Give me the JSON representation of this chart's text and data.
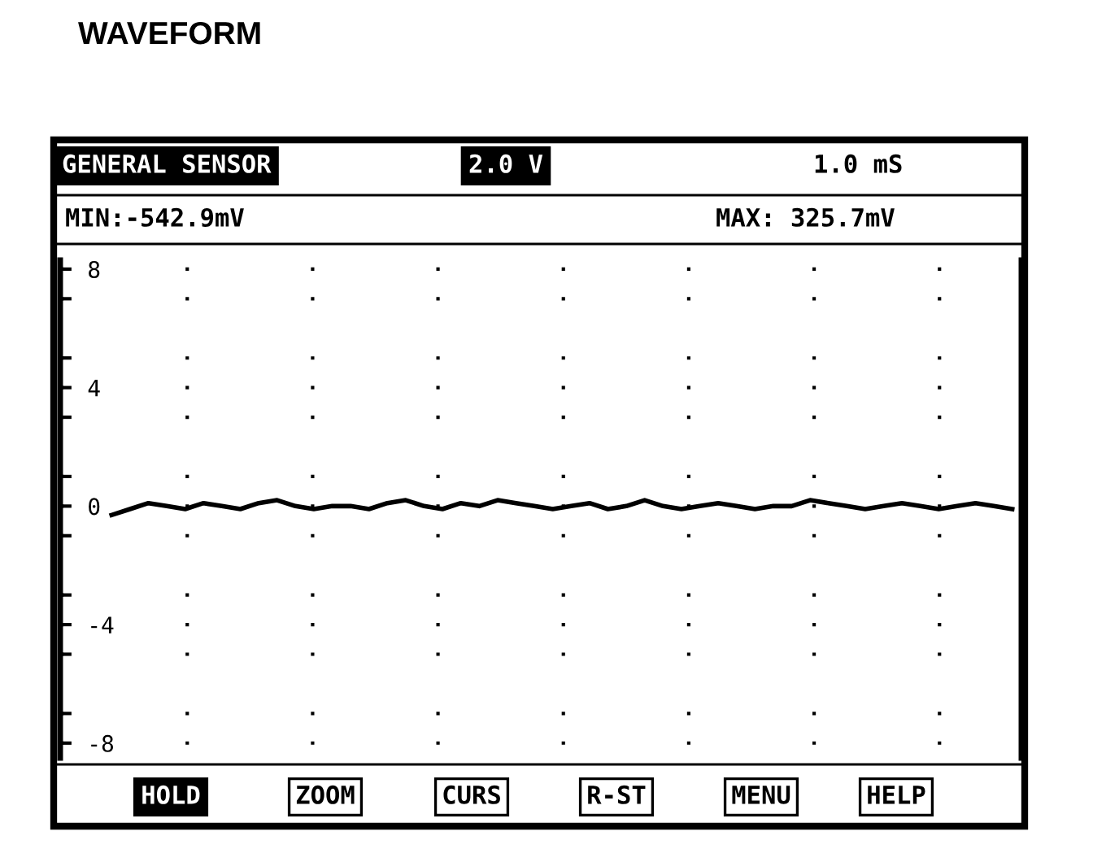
{
  "chart_data": {
    "type": "line",
    "title": "WAVEFORM",
    "annotations": [
      "GENERAL SENSOR",
      "2.0 V",
      "1.0 mS",
      "MIN:-542.9mV",
      "MAX: 325.7mV",
      "HOLD",
      "ZOOM",
      "CURS",
      "R-ST",
      "MENU",
      "HELP"
    ],
    "categories": [
      null,
      null,
      null,
      null,
      null,
      null,
      null,
      null,
      null,
      null,
      null,
      null,
      null,
      null,
      null,
      null,
      null,
      null,
      null,
      null,
      null,
      null,
      null,
      null,
      null,
      null,
      null,
      null,
      null,
      null,
      null,
      null,
      null,
      null,
      null,
      null,
      null,
      null,
      null,
      null,
      null,
      null,
      null,
      null,
      null,
      null,
      null,
      null,
      null,
      null
    ],
    "series": [
      {
        "color": "#000000",
        "values": [
          -0.3,
          -0.1,
          0.1,
          0.0,
          -0.1,
          0.1,
          0.0,
          -0.1,
          0.1,
          0.2,
          0.0,
          -0.1,
          0.0,
          0.0,
          -0.1,
          0.1,
          0.2,
          0.0,
          -0.1,
          0.1,
          0.0,
          0.2,
          0.1,
          0.0,
          -0.1,
          0.0,
          0.1,
          -0.1,
          0.0,
          0.2,
          0.0,
          -0.1,
          0.0,
          0.1,
          0.0,
          -0.1,
          0.0,
          0.0,
          0.2,
          0.1,
          0.0,
          -0.1,
          0.0,
          0.1,
          0.0,
          -0.1,
          0.0,
          0.1,
          0.0,
          -0.1
        ]
      }
    ],
    "ylim": [
      -8.5,
      8.3
    ],
    "yticks": [
      8,
      {
        "value": 7,
        "label": null
      },
      {
        "value": 5,
        "label": null
      },
      4,
      {
        "value": 3,
        "label": null
      },
      {
        "value": 1,
        "label": null
      },
      0,
      {
        "value": -1,
        "label": null
      },
      {
        "value": -3,
        "label": null
      },
      -4,
      {
        "value": -5,
        "label": null
      },
      {
        "value": -7,
        "label": null
      },
      -8
    ],
    "grid": "y",
    "tick_labels": "y",
    "line_style": "solid",
    "marker": "none",
    "legend": false
  }
}
